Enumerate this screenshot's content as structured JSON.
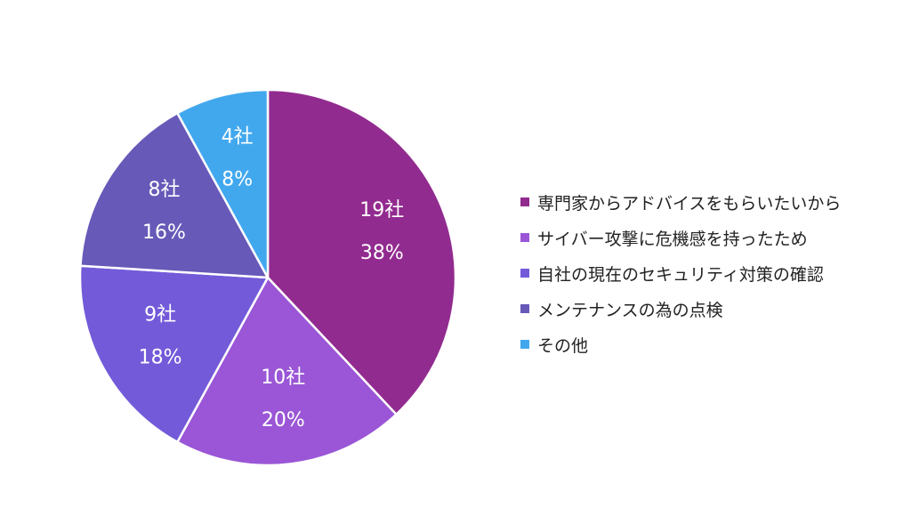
{
  "chart_data": {
    "type": "pie",
    "start_angle_deg": 0,
    "direction": "clockwise",
    "slices": [
      {
        "name": "専門家からアドバイスをもらいたいから",
        "count": 19,
        "count_label": "19社",
        "percent_label": "38%",
        "color": "#922b8f"
      },
      {
        "name": "サイバー攻撃に危機感を持ったため",
        "count": 10,
        "count_label": "10社",
        "percent_label": "20%",
        "color": "#9a56d6"
      },
      {
        "name": "自社の現在のセキュリティ対策の確認",
        "count": 9,
        "count_label": "9社",
        "percent_label": "18%",
        "color": "#735ad9"
      },
      {
        "name": "メンテナンスの為の点検",
        "count": 8,
        "count_label": "8社",
        "percent_label": "16%",
        "color": "#6659b8"
      },
      {
        "name": "その他",
        "count": 4,
        "count_label": "4社",
        "percent_label": "8%",
        "color": "#42a8ee"
      }
    ],
    "legend_position": "right"
  }
}
